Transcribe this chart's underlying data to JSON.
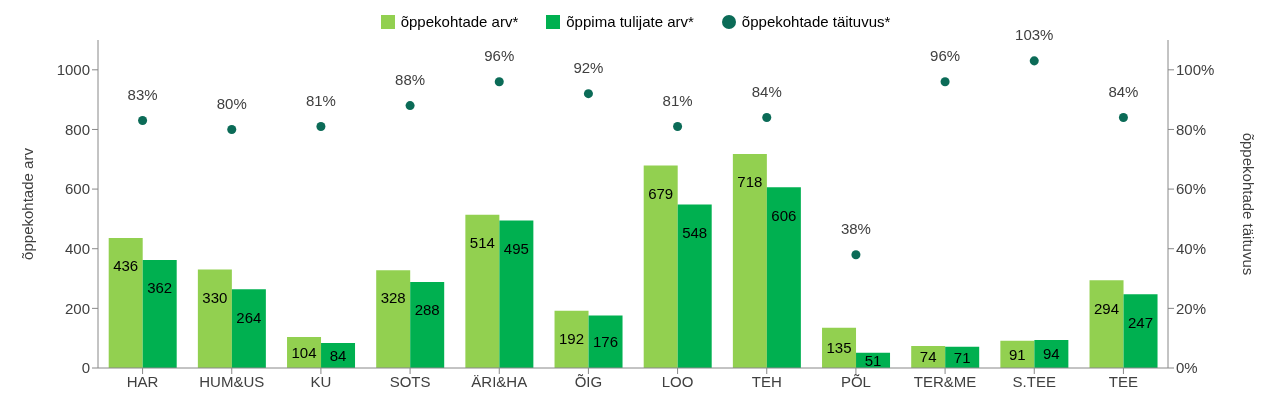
{
  "chart_data": {
    "type": "bar",
    "categories": [
      "HAR",
      "HUM&US",
      "KU",
      "SOTS",
      "ÄRI&HA",
      "ÕIG",
      "LOO",
      "TEH",
      "PÕL",
      "TER&ME",
      "S.TEE",
      "TEE"
    ],
    "series": [
      {
        "name": "õppekohtade arv*",
        "color": "#92d050",
        "values": [
          436,
          330,
          104,
          328,
          514,
          192,
          679,
          718,
          135,
          74,
          91,
          294
        ]
      },
      {
        "name": "õppima tulijate arv*",
        "color": "#00b050",
        "values": [
          362,
          264,
          84,
          288,
          495,
          176,
          548,
          606,
          51,
          71,
          94,
          247
        ]
      },
      {
        "name": "õppekohtade täituvus*",
        "type": "scatter",
        "axis": "y2",
        "color": "#0b6b57",
        "values": [
          83,
          80,
          81,
          88,
          96,
          92,
          81,
          84,
          38,
          96,
          103,
          84
        ],
        "value_labels": [
          "83%",
          "80%",
          "81%",
          "88%",
          "96%",
          "92%",
          "81%",
          "84%",
          "38%",
          "96%",
          "103%",
          "84%"
        ]
      }
    ],
    "data_labels": true,
    "ylabel": "õppekohtade arv",
    "y2label": "õppekohtade täituvus",
    "ylim": [
      0,
      1100
    ],
    "yticks": [
      0,
      200,
      400,
      600,
      800,
      1000
    ],
    "y2lim": [
      0,
      110
    ],
    "y2ticks": [
      {
        "value": 0,
        "label": "0%"
      },
      {
        "value": 20,
        "label": "20%"
      },
      {
        "value": 40,
        "label": "40%"
      },
      {
        "value": 60,
        "label": "60%"
      },
      {
        "value": 80,
        "label": "80%"
      },
      {
        "value": 100,
        "label": "100%"
      }
    ],
    "grid": false,
    "legend": "top",
    "marker": "circle"
  }
}
